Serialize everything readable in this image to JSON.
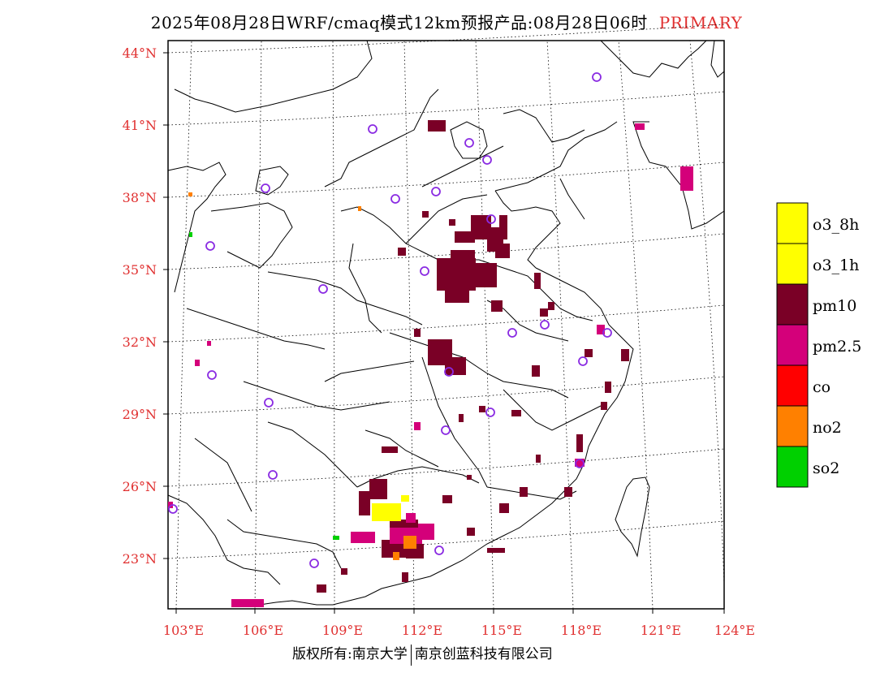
{
  "header": {
    "title": "2025年08月28日WRF/cmaq模式12km预报产品:08月28日06时",
    "tag": "PRIMARY"
  },
  "footer": {
    "copyright": "版权所有:南京大学",
    "company": "南京创蓝科技有限公司"
  },
  "axes": {
    "lat_labels": [
      "44°N",
      "41°N",
      "38°N",
      "35°N",
      "32°N",
      "29°N",
      "26°N",
      "23°N"
    ],
    "lon_labels": [
      "103°E",
      "106°E",
      "109°E",
      "112°E",
      "115°E",
      "118°E",
      "121°E",
      "124°E"
    ],
    "label_color": "#e03030"
  },
  "legend": {
    "items": [
      {
        "label": "o3_8h",
        "color": "#ffff00"
      },
      {
        "label": "o3_1h",
        "color": "#ffff00"
      },
      {
        "label": "pm10",
        "color": "#7a0026"
      },
      {
        "label": "pm2.5",
        "color": "#d4007a"
      },
      {
        "label": "co",
        "color": "#ff0000"
      },
      {
        "label": "no2",
        "color": "#ff8000"
      },
      {
        "label": "so2",
        "color": "#00d000"
      }
    ]
  },
  "colors": {
    "pm10": "#7a0026",
    "pm25": "#d4007a",
    "o3": "#ffff00",
    "no2": "#ff8000",
    "so2": "#00d000",
    "station": "#8a2be2"
  }
}
